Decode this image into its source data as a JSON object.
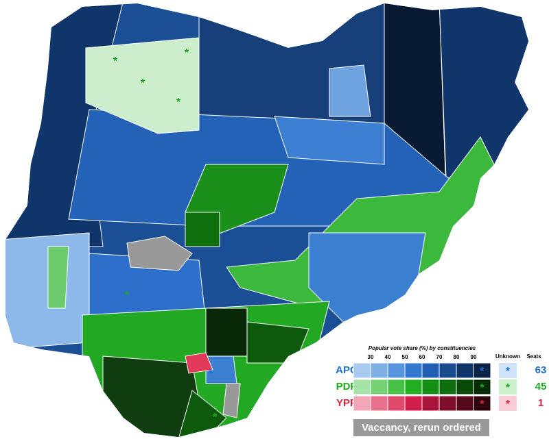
{
  "legend": {
    "title": "Popular vote share (%) by constituencies",
    "scale_ticks": [
      30,
      40,
      50,
      60,
      70,
      80,
      90
    ],
    "unknown_label": "Unknown",
    "seats_label": "Seats",
    "marker": "*",
    "parties": [
      {
        "name": "APC",
        "color": "#1f6fd0",
        "seats": 63,
        "swatches": [
          "#a9cbef",
          "#7fb0e6",
          "#5895dc",
          "#3279cf",
          "#2160b2",
          "#184c8f",
          "#10356a",
          "#0a2346"
        ],
        "unknown_swatch": "#cfe3f8"
      },
      {
        "name": "PDP",
        "color": "#1ca81c",
        "seats": 45,
        "swatches": [
          "#a6e3a6",
          "#74d174",
          "#47c247",
          "#22b022",
          "#138f13",
          "#0d6e0d",
          "#084b08",
          "#042b04"
        ],
        "unknown_swatch": "#cdf0cd"
      },
      {
        "name": "YPP",
        "color": "#e0203c",
        "seats": 1,
        "swatches": [
          "#f2a6b8",
          "#e8728e",
          "#df4a6c",
          "#d21e4a",
          "#a8143a",
          "#7f0e2b",
          "#56091d",
          "#2e040f"
        ],
        "unknown_swatch": "#f8cdd8"
      }
    ]
  },
  "vacancy_label": "Vaccancy, rerun ordered"
}
